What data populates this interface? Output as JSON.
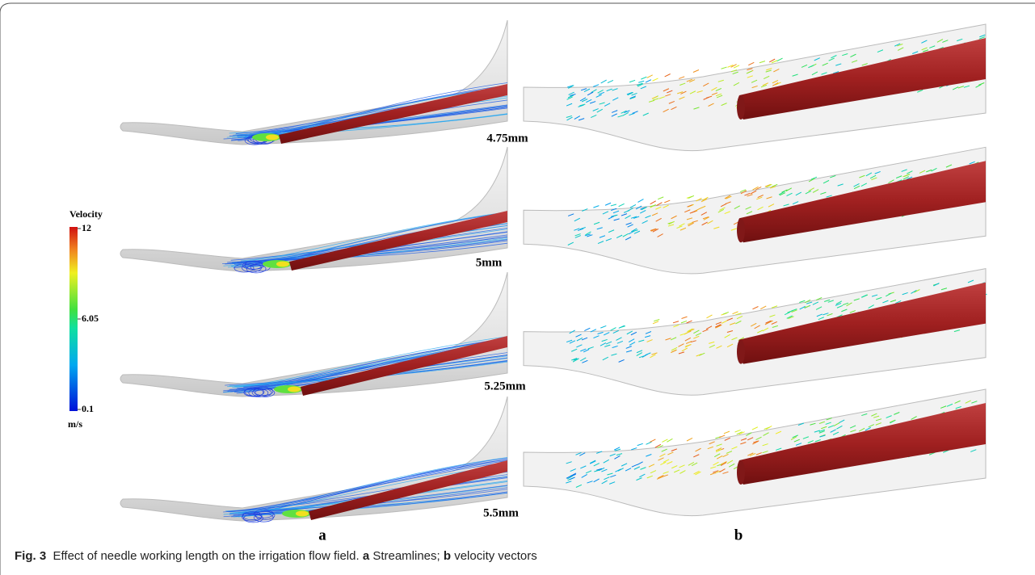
{
  "colorbar": {
    "title": "Velocity",
    "unit": "m/s",
    "ticks": [
      12,
      6.05,
      0.1
    ]
  },
  "length_labels": [
    "4.75mm",
    "5mm",
    "5.25mm",
    "5.5mm"
  ],
  "panel_labels": [
    "a",
    "b"
  ],
  "caption": {
    "label": "Fig. 3",
    "text": "Effect of needle working length on the irrigation flow field.",
    "parts": [
      {
        "label": "a",
        "text": "Streamlines;"
      },
      {
        "label": "b",
        "text": "velocity vectors"
      }
    ]
  }
}
